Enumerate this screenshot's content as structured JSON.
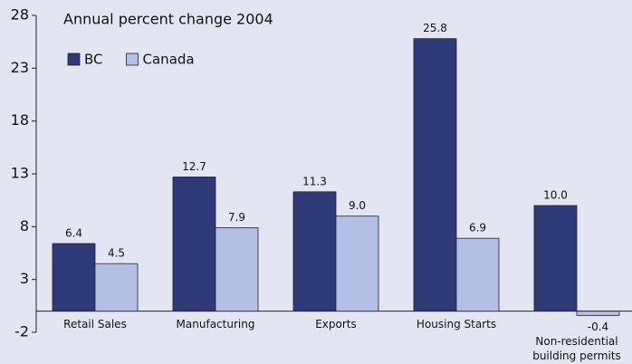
{
  "chart_data": {
    "type": "bar",
    "title": "Annual percent change 2004",
    "categories": [
      "Retail Sales",
      "Manufacturing",
      "Exports",
      "Housing Starts",
      "Non-residential building permits"
    ],
    "series": [
      {
        "name": "BC",
        "color": "#2e3a78",
        "values": [
          6.4,
          12.7,
          11.3,
          25.8,
          10.0
        ],
        "value_labels": [
          "6.4",
          "12.7",
          "11.3",
          "25.8",
          "10.0"
        ]
      },
      {
        "name": "Canada",
        "color": "#b4bfe6",
        "values": [
          4.5,
          7.9,
          9.0,
          6.9,
          -0.4
        ],
        "value_labels": [
          "4.5",
          "7.9",
          "9.0",
          "6.9",
          "-0.4"
        ]
      }
    ],
    "ylim": [
      -2,
      28
    ],
    "yticks": [
      -2,
      3,
      8,
      13,
      18,
      23,
      28
    ],
    "grid": false,
    "legend": "top-left"
  }
}
